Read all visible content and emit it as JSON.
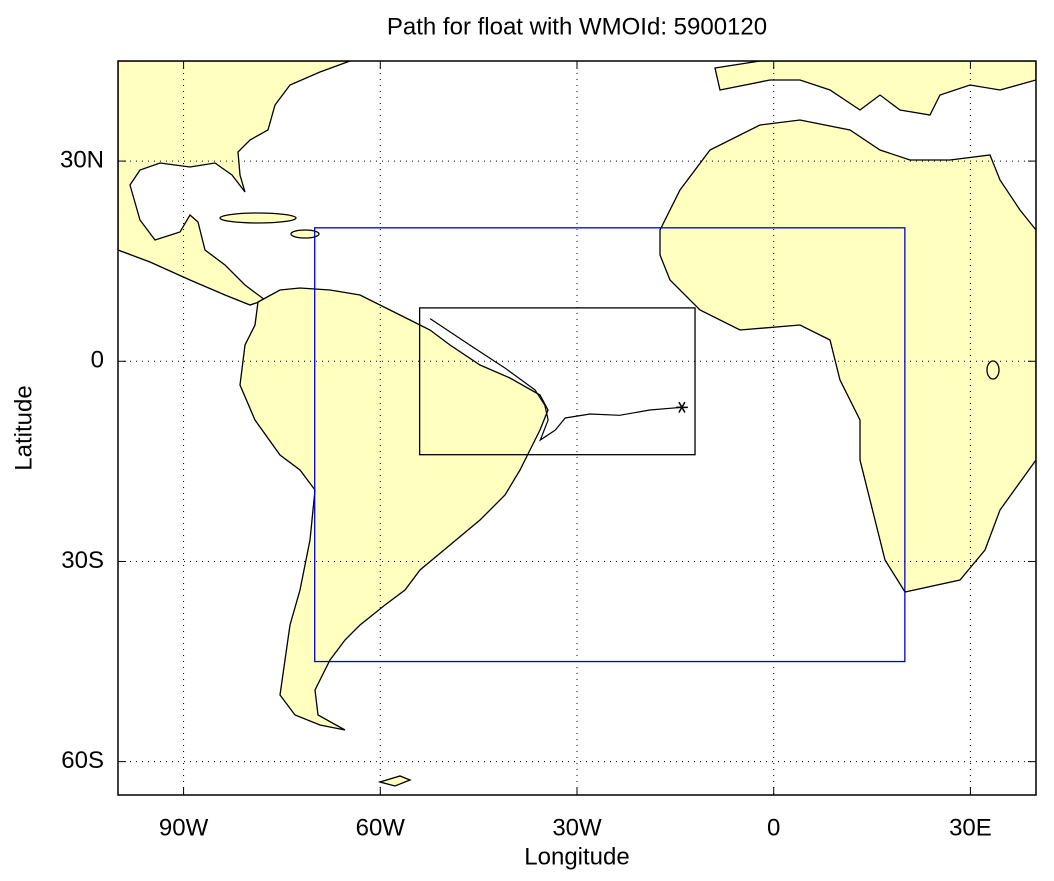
{
  "chart_data": {
    "type": "map",
    "title": "Path for float with WMOId: 5900120",
    "x_label": "Longitude",
    "y_label": "Latitude",
    "xlim": [
      -100,
      40
    ],
    "ylim": [
      -65,
      45
    ],
    "xticks": [
      {
        "value": -90,
        "label": "90W"
      },
      {
        "value": -60,
        "label": "60W"
      },
      {
        "value": -30,
        "label": "30W"
      },
      0,
      {
        "value": 30,
        "label": "30E"
      }
    ],
    "yticks": [
      {
        "value": 30,
        "label": "30N"
      },
      0,
      {
        "value": -30,
        "label": "30S"
      },
      {
        "value": -60,
        "label": "60S"
      }
    ],
    "grid": true,
    "land_color": "#ffffc0",
    "boxes": [
      {
        "color": "#0000cc",
        "lon": [
          -70,
          20
        ],
        "lat": [
          -45,
          20
        ]
      },
      {
        "color": "#000000",
        "lon": [
          -54,
          -12
        ],
        "lat": [
          -14,
          8
        ]
      }
    ],
    "track": {
      "color": "#000000",
      "x": [
        -52.4,
        -46.3,
        -41.0,
        -36.4,
        -34.9,
        -34.4,
        -35.6,
        -33.3,
        -31.8,
        -28.0,
        -23.5,
        -18.9,
        -14.0
      ],
      "y": [
        6.4,
        2.4,
        -1.0,
        -4.3,
        -6.6,
        -8.8,
        -11.8,
        -10.3,
        -8.5,
        -7.9,
        -8.1,
        -7.3,
        -6.9
      ]
    }
  }
}
